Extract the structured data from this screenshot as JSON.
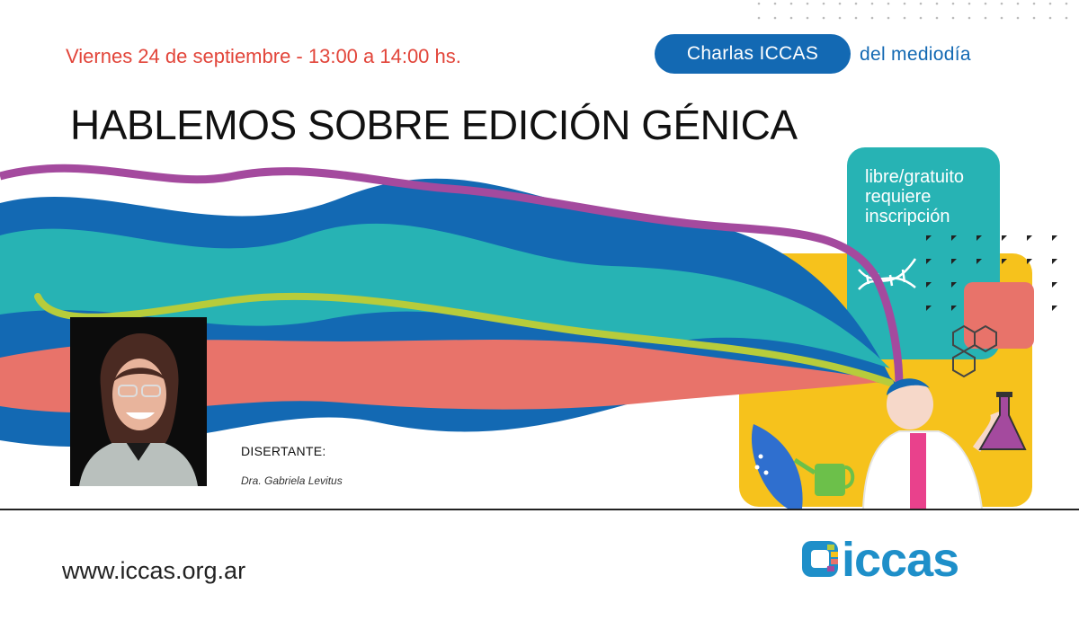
{
  "header": {
    "date_line": "Viernes 24 de septiembre - 13:00 a 14:00 hs.",
    "series_pill": "Charlas ICCAS",
    "series_suffix": "del mediodía"
  },
  "title": "HABLEMOS SOBRE EDICIÓN GÉNICA",
  "badge": {
    "line1": "libre/gratuito",
    "line2": "requiere",
    "line3": "inscripción"
  },
  "speaker": {
    "label": "DISERTANTE:",
    "name": "Dra. Gabriela Levitus"
  },
  "footer": {
    "website": "www.iccas.org.ar",
    "logo": "iccas"
  },
  "colors": {
    "accent_red": "#e2453a",
    "brand_blue": "#1369b3",
    "teal": "#27b3b4",
    "coral": "#e8736a",
    "purple": "#a44a9e",
    "lime": "#b7cc3b",
    "yellow": "#f6c21c"
  }
}
